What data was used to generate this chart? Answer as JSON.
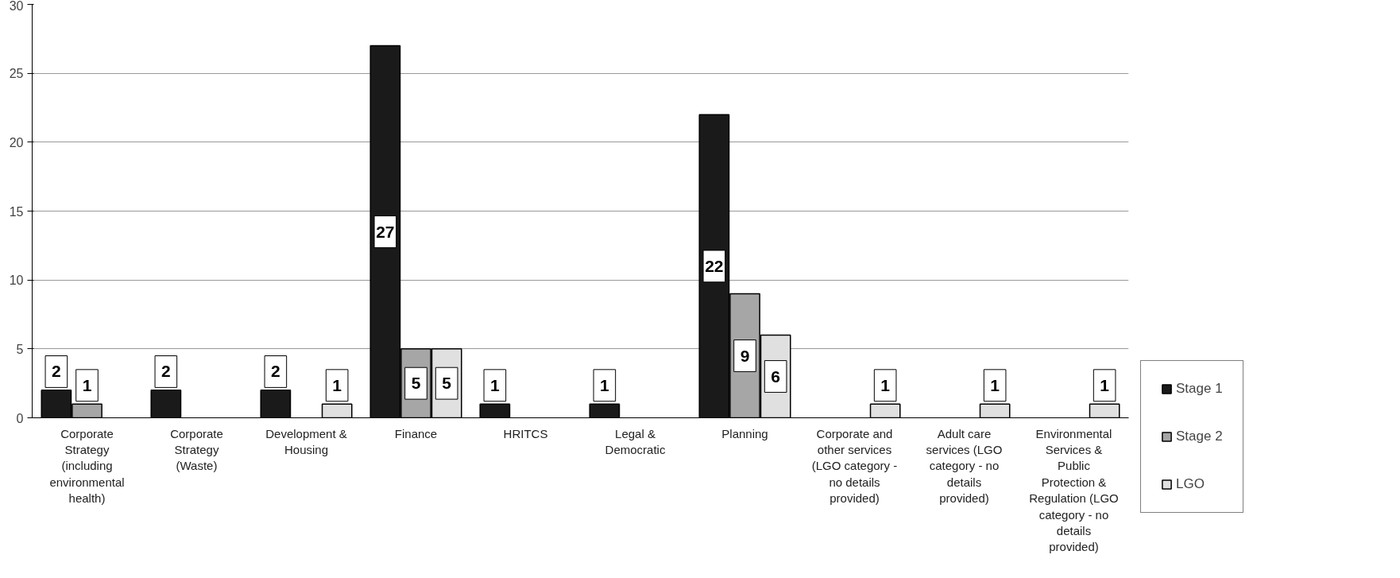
{
  "chart_data": {
    "type": "bar",
    "categories": [
      "Corporate Strategy (including environmental health)",
      "Corporate Strategy (Waste)",
      "Development & Housing",
      "Finance",
      "HRITCS",
      "Legal & Democratic",
      "Planning",
      "Corporate and other services (LGO category - no details provided)",
      "Adult care services (LGO category - no details provided)",
      "Environmental Services & Public Protection & Regulation (LGO category - no details provided)"
    ],
    "series": [
      {
        "name": "Stage 1",
        "color": "#1a1a1a",
        "values": [
          2,
          2,
          2,
          27,
          1,
          1,
          22,
          null,
          null,
          null
        ]
      },
      {
        "name": "Stage 2",
        "color": "#a6a6a6",
        "values": [
          1,
          null,
          null,
          5,
          null,
          null,
          9,
          null,
          null,
          null
        ]
      },
      {
        "name": "LGO",
        "color": "#e0e0e0",
        "values": [
          null,
          null,
          1,
          5,
          null,
          null,
          6,
          1,
          1,
          1
        ]
      }
    ],
    "ylim": [
      0,
      30
    ],
    "yticks": [
      0,
      5,
      10,
      15,
      20,
      25,
      30
    ],
    "grid": "y",
    "legend": "right",
    "data_labels": true
  }
}
